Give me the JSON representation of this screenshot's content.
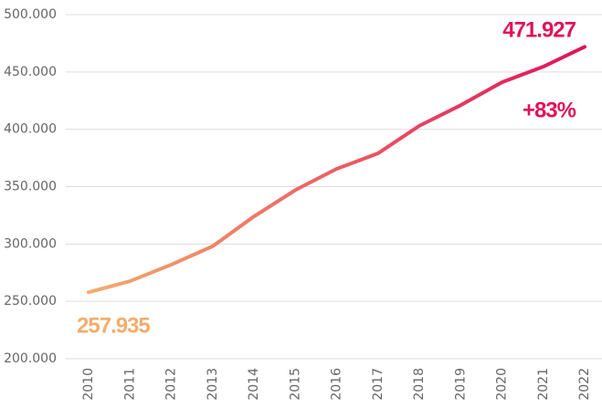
{
  "chart_data": {
    "type": "line",
    "categories": [
      "2010",
      "2011",
      "2012",
      "2013",
      "2014",
      "2015",
      "2016",
      "2017",
      "2018",
      "2019",
      "2020",
      "2021",
      "2022"
    ],
    "series": [
      {
        "values": [
          257935,
          267600,
          282000,
          298000,
          324000,
          347000,
          365500,
          379000,
          403000,
          421000,
          441000,
          454600,
          471927
        ],
        "value_labels": [
          "257.935",
          null,
          null,
          null,
          null,
          null,
          null,
          null,
          null,
          null,
          null,
          null,
          "471.927"
        ],
        "colors": [
          "#f4ac6c",
          "#e0125a"
        ]
      }
    ],
    "annotations": [
      "+83%"
    ],
    "ylim": [
      200000,
      500000
    ],
    "yticks": [
      {
        "value": 200000,
        "label": "200.000"
      },
      {
        "value": 250000,
        "label": "250.000"
      },
      {
        "value": 300000,
        "label": "300.000"
      },
      {
        "value": 350000,
        "label": "350.000"
      },
      {
        "value": 400000,
        "label": "400.000"
      },
      {
        "value": 450000,
        "label": "450.000"
      },
      {
        "value": 500000,
        "label": "500.000"
      }
    ],
    "grid": true
  }
}
